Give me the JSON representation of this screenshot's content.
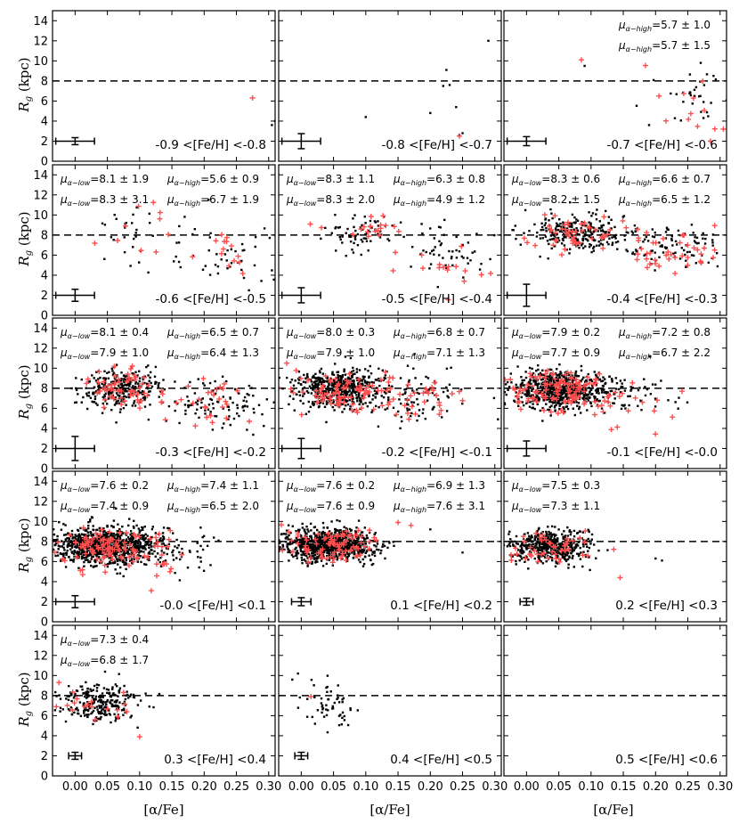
{
  "chart_data": {
    "type": "scatter",
    "ylabel": "R_g (kpc)",
    "xlabel": "[α/Fe]",
    "xlim": [
      -0.035,
      0.31
    ],
    "ylim": [
      0,
      15
    ],
    "x_ticks": [
      0.0,
      0.05,
      0.1,
      0.15,
      0.2,
      0.25,
      0.3
    ],
    "x_tick_labels": [
      "0.00",
      "0.05",
      "0.10",
      "0.15",
      "0.20",
      "0.25",
      "0.30"
    ],
    "y_ticks": [
      0,
      2,
      4,
      6,
      8,
      10,
      12,
      14
    ],
    "y_tick_labels": [
      "0",
      "2",
      "4",
      "6",
      "8",
      "10",
      "12",
      "14"
    ],
    "reference_line_y": 8,
    "series_styles": {
      "alpha_low": {
        "color": "#000000",
        "marker": "dot"
      },
      "alpha_high": {
        "color": "#ff4d4d",
        "marker": "plus"
      }
    },
    "panels": [
      {
        "range": "-0.9 <[Fe/H] <-0.8",
        "errbar": {
          "x": 0.0,
          "y": 2.0,
          "xerr": 0.03,
          "yerr": 0.35
        },
        "stats": [],
        "clouds": [],
        "red_clouds": [],
        "points": [
          [
            0.305,
            3.6
          ],
          [
            0.31,
            4.0
          ]
        ],
        "red_points": [
          [
            0.275,
            6.3
          ]
        ]
      },
      {
        "range": "-0.8 <[Fe/H] <-0.7",
        "errbar": {
          "x": 0.0,
          "y": 2.0,
          "xerr": 0.03,
          "yerr": 0.75
        },
        "stats": [],
        "clouds": [],
        "red_clouds": [],
        "points": [
          [
            0.29,
            12.0
          ],
          [
            0.225,
            9.1
          ],
          [
            0.22,
            7.5
          ],
          [
            0.23,
            7.6
          ],
          [
            0.2,
            4.8
          ],
          [
            0.24,
            5.4
          ],
          [
            0.1,
            4.4
          ],
          [
            0.245,
            2.6
          ],
          [
            0.25,
            2.8
          ]
        ],
        "red_points": [
          [
            0.245,
            2.5
          ]
        ]
      },
      {
        "range": "-0.7 <[Fe/H] <-0.6",
        "errbar": {
          "x": 0.0,
          "y": 2.0,
          "xerr": 0.03,
          "yerr": 0.45
        },
        "stats": [
          {
            "sym": "μ",
            "sub": "α−high",
            "text": "=5.7 ± 1.0",
            "row": 0,
            "col": "right"
          },
          {
            "sym": "μ",
            "sub": "α−high",
            "text": "=5.7 ± 1.5",
            "row": 1,
            "col": "right"
          }
        ],
        "clouds": [
          {
            "n": 35,
            "cx": 0.26,
            "cy": 6.5,
            "sx": 0.03,
            "sy": 1.6,
            "seed": 3
          }
        ],
        "red_clouds": [
          {
            "n": 12,
            "cx": 0.26,
            "cy": 5.6,
            "sx": 0.03,
            "sy": 1.6,
            "seed": 4
          }
        ],
        "points": [
          [
            0.09,
            9.5
          ],
          [
            0.19,
            3.6
          ],
          [
            0.27,
            9.8
          ]
        ],
        "red_points": [
          [
            0.085,
            10.1
          ],
          [
            0.285,
            2.0
          ],
          [
            0.305,
            3.2
          ]
        ]
      },
      {
        "range": "-0.6 <[Fe/H] <-0.5",
        "errbar": {
          "x": 0.0,
          "y": 2.0,
          "xerr": 0.03,
          "yerr": 0.6
        },
        "stats": [
          {
            "sym": "μ",
            "sub": "α−low",
            "text": "=8.1 ± 1.9",
            "row": 0,
            "col": "left"
          },
          {
            "sym": "μ",
            "sub": "α−high",
            "text": "=5.6 ± 0.9",
            "row": 0,
            "col": "right"
          },
          {
            "sym": "μ",
            "sub": "α−low",
            "text": "=8.3 ± 3.1",
            "row": 1,
            "col": "left"
          },
          {
            "sym": "μ",
            "sub": "α−high",
            "text": "=6.7 ± 1.9",
            "row": 1,
            "col": "right"
          }
        ],
        "clouds": [
          {
            "n": 35,
            "cx": 0.1,
            "cy": 8.0,
            "sx": 0.035,
            "sy": 1.8,
            "seed": 5
          },
          {
            "n": 40,
            "cx": 0.24,
            "cy": 5.8,
            "sx": 0.035,
            "sy": 1.5,
            "seed": 6
          }
        ],
        "red_clouds": [
          {
            "n": 10,
            "cx": 0.12,
            "cy": 8.5,
            "sx": 0.04,
            "sy": 1.5,
            "seed": 7
          },
          {
            "n": 14,
            "cx": 0.24,
            "cy": 6.5,
            "sx": 0.035,
            "sy": 1.4,
            "seed": 8
          }
        ],
        "points": [],
        "red_points": []
      },
      {
        "range": "-0.5 <[Fe/H] <-0.4",
        "errbar": {
          "x": 0.0,
          "y": 2.0,
          "xerr": 0.03,
          "yerr": 0.75
        },
        "stats": [
          {
            "sym": "μ",
            "sub": "α−low",
            "text": "=8.3 ± 1.1",
            "row": 0,
            "col": "left"
          },
          {
            "sym": "μ",
            "sub": "α−high",
            "text": "=6.3 ± 0.8",
            "row": 0,
            "col": "right"
          },
          {
            "sym": "μ",
            "sub": "α−low",
            "text": "=8.3 ± 2.0",
            "row": 1,
            "col": "left"
          },
          {
            "sym": "μ",
            "sub": "α−high",
            "text": "=4.9 ± 1.2",
            "row": 1,
            "col": "right"
          }
        ],
        "clouds": [
          {
            "n": 70,
            "cx": 0.09,
            "cy": 8.3,
            "sx": 0.03,
            "sy": 1.0,
            "seed": 9
          },
          {
            "n": 55,
            "cx": 0.23,
            "cy": 6.0,
            "sx": 0.035,
            "sy": 1.4,
            "seed": 10
          }
        ],
        "red_clouds": [
          {
            "n": 20,
            "cx": 0.1,
            "cy": 8.5,
            "sx": 0.03,
            "sy": 0.8,
            "seed": 11
          },
          {
            "n": 18,
            "cx": 0.23,
            "cy": 5.0,
            "sx": 0.035,
            "sy": 1.3,
            "seed": 12
          }
        ],
        "points": [],
        "red_points": []
      },
      {
        "range": "-0.4 <[Fe/H] <-0.3",
        "errbar": {
          "x": 0.0,
          "y": 2.0,
          "xerr": 0.03,
          "yerr": 1.1
        },
        "stats": [
          {
            "sym": "μ",
            "sub": "α−low",
            "text": "=8.3 ± 0.6",
            "row": 0,
            "col": "left"
          },
          {
            "sym": "μ",
            "sub": "α−high",
            "text": "=6.6 ± 0.7",
            "row": 0,
            "col": "right"
          },
          {
            "sym": "μ",
            "sub": "α−low",
            "text": "=8.2 ± 1.5",
            "row": 1,
            "col": "left"
          },
          {
            "sym": "μ",
            "sub": "α−high",
            "text": "=6.5 ± 1.2",
            "row": 1,
            "col": "right"
          }
        ],
        "clouds": [
          {
            "n": 260,
            "cx": 0.08,
            "cy": 8.3,
            "sx": 0.04,
            "sy": 0.9,
            "seed": 13
          },
          {
            "n": 90,
            "cx": 0.23,
            "cy": 6.8,
            "sx": 0.04,
            "sy": 1.1,
            "seed": 14
          }
        ],
        "red_clouds": [
          {
            "n": 50,
            "cx": 0.08,
            "cy": 8.5,
            "sx": 0.035,
            "sy": 0.9,
            "seed": 15
          },
          {
            "n": 40,
            "cx": 0.23,
            "cy": 6.5,
            "sx": 0.04,
            "sy": 1.0,
            "seed": 16
          }
        ],
        "points": [],
        "red_points": []
      },
      {
        "range": "-0.3 <[Fe/H] <-0.2",
        "errbar": {
          "x": 0.0,
          "y": 2.0,
          "xerr": 0.03,
          "yerr": 1.2
        },
        "stats": [
          {
            "sym": "μ",
            "sub": "α−low",
            "text": "=8.1 ± 0.4",
            "row": 0,
            "col": "left"
          },
          {
            "sym": "μ",
            "sub": "α−high",
            "text": "=6.5 ± 0.7",
            "row": 0,
            "col": "right"
          },
          {
            "sym": "μ",
            "sub": "α−low",
            "text": "=7.9 ± 1.0",
            "row": 1,
            "col": "left"
          },
          {
            "sym": "μ",
            "sub": "α−high",
            "text": "=6.4 ± 1.3",
            "row": 1,
            "col": "right"
          }
        ],
        "clouds": [
          {
            "n": 300,
            "cx": 0.07,
            "cy": 8.0,
            "sx": 0.03,
            "sy": 1.0,
            "seed": 17
          },
          {
            "n": 100,
            "cx": 0.22,
            "cy": 6.5,
            "sx": 0.04,
            "sy": 1.2,
            "seed": 18
          }
        ],
        "red_clouds": [
          {
            "n": 60,
            "cx": 0.07,
            "cy": 8.0,
            "sx": 0.03,
            "sy": 1.0,
            "seed": 19
          },
          {
            "n": 30,
            "cx": 0.2,
            "cy": 6.5,
            "sx": 0.045,
            "sy": 1.3,
            "seed": 20
          }
        ],
        "points": [],
        "red_points": []
      },
      {
        "range": "-0.2 <[Fe/H] <-0.1",
        "errbar": {
          "x": 0.0,
          "y": 2.0,
          "xerr": 0.03,
          "yerr": 1.0
        },
        "stats": [
          {
            "sym": "μ",
            "sub": "α−low",
            "text": "=8.0 ± 0.3",
            "row": 0,
            "col": "left"
          },
          {
            "sym": "μ",
            "sub": "α−high",
            "text": "=6.8 ± 0.7",
            "row": 0,
            "col": "right"
          },
          {
            "sym": "μ",
            "sub": "α−low",
            "text": "=7.9 ± 1.0",
            "row": 1,
            "col": "left"
          },
          {
            "sym": "μ",
            "sub": "α−high",
            "text": "=7.1 ± 1.3",
            "row": 1,
            "col": "right"
          }
        ],
        "clouds": [
          {
            "n": 500,
            "cx": 0.06,
            "cy": 8.0,
            "sx": 0.035,
            "sy": 1.0,
            "seed": 21
          },
          {
            "n": 90,
            "cx": 0.18,
            "cy": 7.0,
            "sx": 0.04,
            "sy": 1.3,
            "seed": 22
          }
        ],
        "red_clouds": [
          {
            "n": 90,
            "cx": 0.07,
            "cy": 7.8,
            "sx": 0.035,
            "sy": 1.0,
            "seed": 23
          },
          {
            "n": 30,
            "cx": 0.18,
            "cy": 6.8,
            "sx": 0.04,
            "sy": 1.2,
            "seed": 24
          }
        ],
        "points": [],
        "red_points": []
      },
      {
        "range": "-0.1 <[Fe/H] <-0.0",
        "errbar": {
          "x": 0.0,
          "y": 2.0,
          "xerr": 0.03,
          "yerr": 0.75
        },
        "stats": [
          {
            "sym": "μ",
            "sub": "α−low",
            "text": "=7.9 ± 0.2",
            "row": 0,
            "col": "left"
          },
          {
            "sym": "μ",
            "sub": "α−high",
            "text": "=7.2 ± 0.8",
            "row": 0,
            "col": "right"
          },
          {
            "sym": "μ",
            "sub": "α−low",
            "text": "=7.7 ± 0.9",
            "row": 1,
            "col": "left"
          },
          {
            "sym": "μ",
            "sub": "α−high",
            "text": "=6.7 ± 2.2",
            "row": 1,
            "col": "right"
          }
        ],
        "clouds": [
          {
            "n": 700,
            "cx": 0.05,
            "cy": 7.9,
            "sx": 0.035,
            "sy": 0.9,
            "seed": 25
          },
          {
            "n": 60,
            "cx": 0.15,
            "cy": 7.5,
            "sx": 0.04,
            "sy": 1.1,
            "seed": 26
          }
        ],
        "red_clouds": [
          {
            "n": 110,
            "cx": 0.05,
            "cy": 7.9,
            "sx": 0.035,
            "sy": 0.9,
            "seed": 27
          },
          {
            "n": 25,
            "cx": 0.14,
            "cy": 7.0,
            "sx": 0.04,
            "sy": 1.2,
            "seed": 28
          }
        ],
        "points": [],
        "red_points": []
      },
      {
        "range": "-0.0 <[Fe/H] <0.1",
        "errbar": {
          "x": 0.0,
          "y": 2.0,
          "xerr": 0.03,
          "yerr": 0.6
        },
        "stats": [
          {
            "sym": "μ",
            "sub": "α−low",
            "text": "=7.6 ± 0.2",
            "row": 0,
            "col": "left"
          },
          {
            "sym": "μ",
            "sub": "α−high",
            "text": "=7.4 ± 1.1",
            "row": 0,
            "col": "right"
          },
          {
            "sym": "μ",
            "sub": "α−low",
            "text": "=7.4 ± 0.9",
            "row": 1,
            "col": "left"
          },
          {
            "sym": "μ",
            "sub": "α−high",
            "text": "=6.5 ± 2.0",
            "row": 1,
            "col": "right"
          }
        ],
        "clouds": [
          {
            "n": 950,
            "cx": 0.045,
            "cy": 7.6,
            "sx": 0.04,
            "sy": 0.9,
            "seed": 29
          },
          {
            "n": 60,
            "cx": 0.15,
            "cy": 7.2,
            "sx": 0.04,
            "sy": 1.1,
            "seed": 30
          }
        ],
        "red_clouds": [
          {
            "n": 100,
            "cx": 0.05,
            "cy": 7.4,
            "sx": 0.035,
            "sy": 0.9,
            "seed": 31
          },
          {
            "n": 20,
            "cx": 0.13,
            "cy": 6.8,
            "sx": 0.04,
            "sy": 1.2,
            "seed": 32
          }
        ],
        "points": [],
        "red_points": []
      },
      {
        "range": "0.1 <[Fe/H] <0.2",
        "errbar": {
          "x": 0.0,
          "y": 2.0,
          "xerr": 0.015,
          "yerr": 0.4
        },
        "stats": [
          {
            "sym": "μ",
            "sub": "α−low",
            "text": "=7.6 ± 0.2",
            "row": 0,
            "col": "left"
          },
          {
            "sym": "μ",
            "sub": "α−high",
            "text": "=6.9 ± 1.3",
            "row": 0,
            "col": "right"
          },
          {
            "sym": "μ",
            "sub": "α−low",
            "text": "=7.6 ± 0.9",
            "row": 1,
            "col": "left"
          },
          {
            "sym": "μ",
            "sub": "α−high",
            "text": "=7.6 ± 3.1",
            "row": 1,
            "col": "right"
          }
        ],
        "clouds": [
          {
            "n": 900,
            "cx": 0.04,
            "cy": 7.6,
            "sx": 0.035,
            "sy": 0.85,
            "seed": 33
          }
        ],
        "red_clouds": [
          {
            "n": 90,
            "cx": 0.05,
            "cy": 7.6,
            "sx": 0.035,
            "sy": 0.9,
            "seed": 34
          }
        ],
        "points": [
          [
            0.2,
            9.2
          ],
          [
            0.25,
            6.9
          ]
        ],
        "red_points": [
          [
            0.15,
            9.9
          ],
          [
            0.17,
            9.6
          ]
        ]
      },
      {
        "range": "0.2 <[Fe/H] <0.3",
        "errbar": {
          "x": 0.0,
          "y": 2.0,
          "xerr": 0.01,
          "yerr": 0.35
        },
        "stats": [
          {
            "sym": "μ",
            "sub": "α−low",
            "text": "=7.5 ± 0.3",
            "row": 0,
            "col": "left"
          },
          {
            "sym": "μ",
            "sub": "α−low",
            "text": "=7.3 ± 1.1",
            "row": 1,
            "col": "left"
          }
        ],
        "clouds": [
          {
            "n": 500,
            "cx": 0.035,
            "cy": 7.5,
            "sx": 0.03,
            "sy": 0.85,
            "seed": 35
          }
        ],
        "red_clouds": [
          {
            "n": 50,
            "cx": 0.04,
            "cy": 7.4,
            "sx": 0.03,
            "sy": 0.9,
            "seed": 36
          }
        ],
        "points": [
          [
            0.2,
            6.3
          ],
          [
            0.21,
            6.1
          ]
        ],
        "red_points": [
          [
            0.145,
            4.4
          ]
        ]
      },
      {
        "range": "0.3 <[Fe/H] <0.4",
        "errbar": {
          "x": 0.0,
          "y": 2.0,
          "xerr": 0.01,
          "yerr": 0.35
        },
        "stats": [
          {
            "sym": "μ",
            "sub": "α−low",
            "text": "=7.3 ± 0.4",
            "row": 0,
            "col": "left"
          },
          {
            "sym": "μ",
            "sub": "α−low",
            "text": "=6.8 ± 1.7",
            "row": 1,
            "col": "left"
          }
        ],
        "clouds": [
          {
            "n": 260,
            "cx": 0.04,
            "cy": 7.3,
            "sx": 0.03,
            "sy": 0.9,
            "seed": 37
          }
        ],
        "red_clouds": [
          {
            "n": 18,
            "cx": 0.04,
            "cy": 7.2,
            "sx": 0.03,
            "sy": 1.0,
            "seed": 38
          }
        ],
        "points": [],
        "red_points": [
          [
            -0.025,
            9.3
          ],
          [
            0.1,
            3.9
          ]
        ]
      },
      {
        "range": "0.4 <[Fe/H] <0.5",
        "errbar": {
          "x": 0.0,
          "y": 2.0,
          "xerr": 0.01,
          "yerr": 0.35
        },
        "stats": [],
        "clouds": [
          {
            "n": 55,
            "cx": 0.04,
            "cy": 7.3,
            "sx": 0.025,
            "sy": 1.1,
            "seed": 39
          }
        ],
        "red_clouds": [],
        "points": [
          [
            -0.005,
            10.2
          ]
        ],
        "red_points": [
          [
            0.015,
            7.9
          ]
        ]
      },
      {
        "range": "0.5 <[Fe/H] <0.6",
        "errbar": null,
        "stats": [],
        "clouds": [],
        "red_clouds": [],
        "points": [],
        "red_points": []
      }
    ]
  }
}
